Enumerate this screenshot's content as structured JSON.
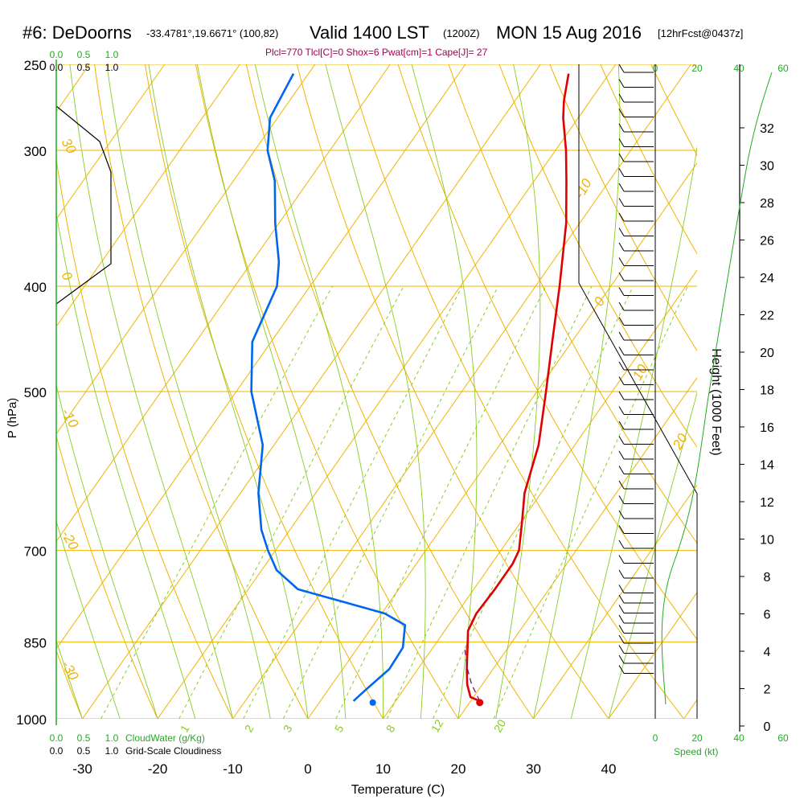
{
  "title": {
    "station": "#6: DeDoorns",
    "coords": "-33.4781°,19.6671° (100,82)",
    "valid": "Valid 1400 LST",
    "zulu": "(1200Z)",
    "date": "MON 15 Aug 2016",
    "forecast": "[12hrFcst@0437z]"
  },
  "subtitle": "Plcl=770 Tlcl[C]=0 Shox=6 Pwat[cm]=1 Cape[J]= 27",
  "colors": {
    "isotherm": "#f0b400",
    "dry_adiabat": "#f0b400",
    "moist_adiabat": "#88cc22",
    "mixing_ratio": "#88cc22",
    "temperature": "#e00000",
    "dewpoint": "#0066ee",
    "parcel": "#6a0a6a",
    "height_curve": "#22aa22",
    "cloud_green": "#22aa22",
    "subtitle": "#a0005a"
  },
  "chart_data": {
    "type": "line",
    "xlabel": "Temperature (C)",
    "ylabel": "P (hPa)",
    "y_scale": "log",
    "y_inverted": true,
    "x_ticks": [
      -30,
      -20,
      -10,
      0,
      10,
      20,
      30,
      40
    ],
    "p_ticks": [
      250,
      300,
      400,
      500,
      700,
      850,
      1000
    ],
    "pressure_levels": [
      250,
      300,
      400,
      500,
      700,
      850,
      1000
    ],
    "dry_adiabat_labels": [
      "-10",
      "0",
      "10",
      "20",
      "30",
      "0",
      "-10",
      "-20",
      "-30"
    ],
    "mixing_ratio_labels": [
      "1",
      "2",
      "3",
      "5",
      "8",
      "12",
      "20"
    ],
    "series": [
      {
        "name": "temperature",
        "points": [
          {
            "p": 963,
            "t": 21.2
          },
          {
            "p": 955,
            "t": 19.6
          },
          {
            "p": 930,
            "t": 18.0
          },
          {
            "p": 900,
            "t": 16.5
          },
          {
            "p": 860,
            "t": 14.6
          },
          {
            "p": 830,
            "t": 13.1
          },
          {
            "p": 800,
            "t": 12.6
          },
          {
            "p": 760,
            "t": 12.8
          },
          {
            "p": 720,
            "t": 12.8
          },
          {
            "p": 700,
            "t": 12.4
          },
          {
            "p": 660,
            "t": 10.2
          },
          {
            "p": 620,
            "t": 7.8
          },
          {
            "p": 560,
            "t": 5.2
          },
          {
            "p": 500,
            "t": 1.2
          },
          {
            "p": 450,
            "t": -2.6
          },
          {
            "p": 400,
            "t": -6.8
          },
          {
            "p": 350,
            "t": -11.8
          },
          {
            "p": 320,
            "t": -15.7
          },
          {
            "p": 300,
            "t": -18.6
          },
          {
            "p": 280,
            "t": -22.0
          },
          {
            "p": 270,
            "t": -23.5
          },
          {
            "p": 255,
            "t": -25.4
          }
        ]
      },
      {
        "name": "dewpoint",
        "points": [
          {
            "p": 963,
            "t": 4.4
          },
          {
            "p": 940,
            "t": 5.0
          },
          {
            "p": 900,
            "t": 6.2
          },
          {
            "p": 860,
            "t": 6.0
          },
          {
            "p": 820,
            "t": 4.2
          },
          {
            "p": 800,
            "t": 0.4
          },
          {
            "p": 780,
            "t": -6.4
          },
          {
            "p": 760,
            "t": -13.4
          },
          {
            "p": 730,
            "t": -18.0
          },
          {
            "p": 700,
            "t": -21.0
          },
          {
            "p": 670,
            "t": -23.8
          },
          {
            "p": 620,
            "t": -27.6
          },
          {
            "p": 560,
            "t": -31.5
          },
          {
            "p": 500,
            "t": -38.0
          },
          {
            "p": 450,
            "t": -42.5
          },
          {
            "p": 400,
            "t": -44.4
          },
          {
            "p": 380,
            "t": -46.4
          },
          {
            "p": 350,
            "t": -50.5
          },
          {
            "p": 320,
            "t": -54.5
          },
          {
            "p": 300,
            "t": -58.3
          },
          {
            "p": 280,
            "t": -61.0
          },
          {
            "p": 255,
            "t": -62.0
          }
        ]
      },
      {
        "name": "parcel",
        "points": [
          {
            "p": 963,
            "t": 21.2
          },
          {
            "p": 930,
            "t": 18.6
          },
          {
            "p": 900,
            "t": 16.6
          },
          {
            "p": 860,
            "t": 14.2
          }
        ]
      }
    ],
    "surface": {
      "p": 963,
      "t": 21.2,
      "td": 4.4
    },
    "height_axis": {
      "label": "Height (1000 Feet)",
      "ticks": [
        0,
        2,
        4,
        6,
        8,
        10,
        12,
        14,
        16,
        18,
        20,
        22,
        24,
        26,
        28,
        30,
        32
      ]
    },
    "wind_speed_axis": {
      "label": "Speed (kt)",
      "ticks": [
        0,
        20,
        40,
        60
      ]
    },
    "cloud_water": {
      "label": "CloudWater (g/Kg)",
      "ticks": [
        "0.0",
        "0.5",
        "1.0"
      ]
    },
    "cloudiness": {
      "label": "Grid-Scale Cloudiness",
      "ticks": [
        "0.0",
        "0.5",
        "1.0"
      ]
    }
  }
}
